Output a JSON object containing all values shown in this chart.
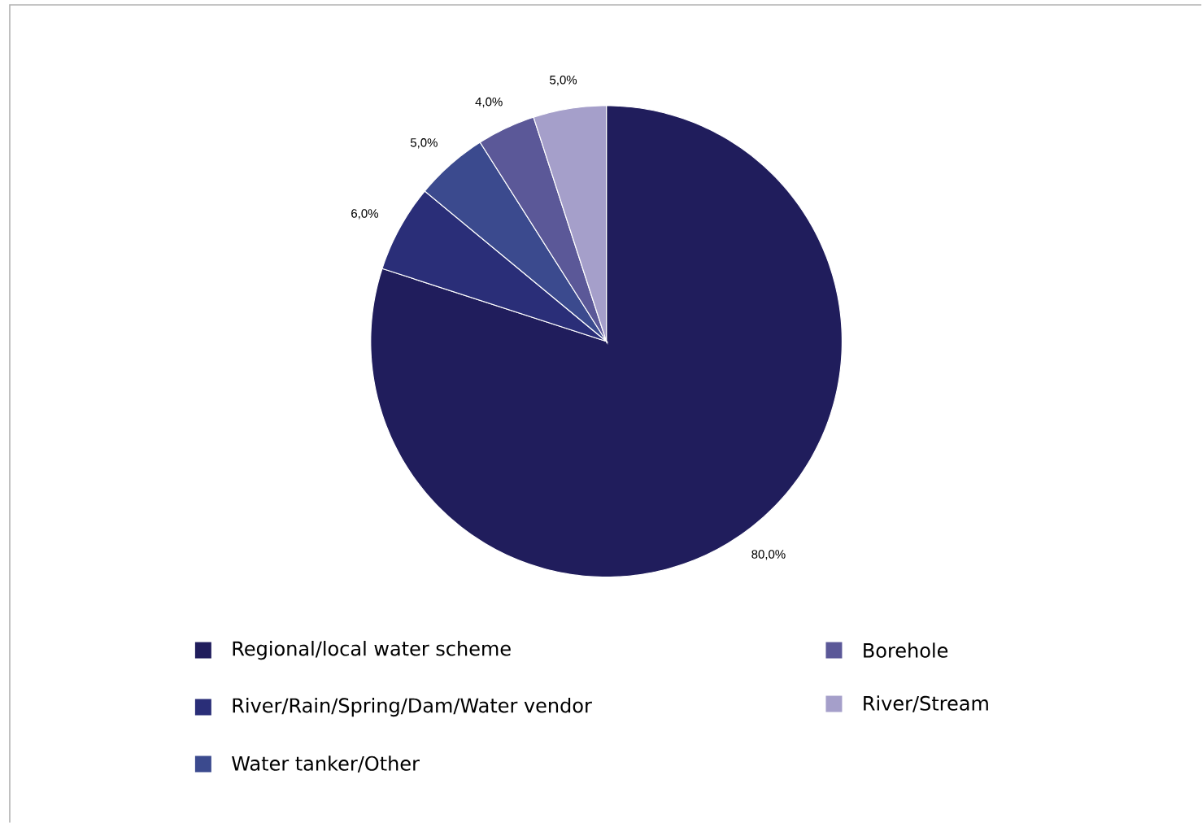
{
  "chart_data": {
    "type": "pie",
    "categories": [
      "Regional/local water scheme",
      "River/Rain/Spring/Dam/Water vendor",
      "Water tanker/Other",
      "Borehole",
      "River/Stream"
    ],
    "values": [
      80,
      6,
      5,
      4,
      5
    ],
    "value_labels": [
      "80,0%",
      "6,0%",
      "5,0%",
      "4,0%",
      "5,0%"
    ],
    "colors": [
      "#201d5c",
      "#2a2e78",
      "#3b4a8e",
      "#5b5898",
      "#a59fca"
    ],
    "legend": "bottom"
  }
}
